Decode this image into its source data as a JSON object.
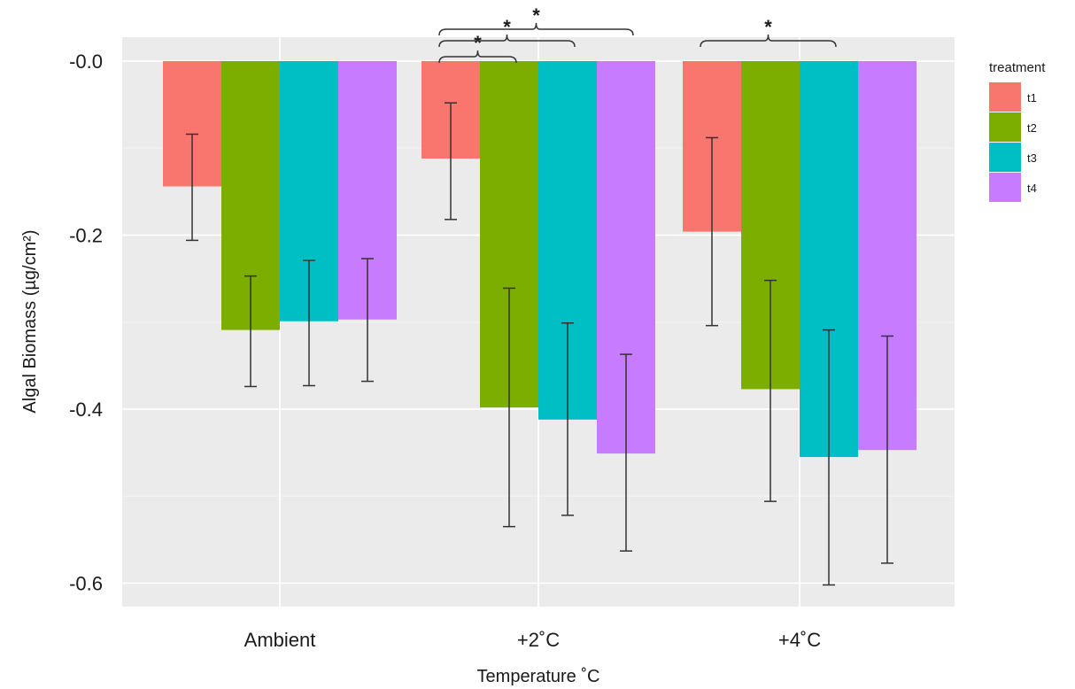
{
  "chart_data": {
    "type": "bar",
    "title": "",
    "xlabel": "Temperature ˚C",
    "ylabel": "Algal Biomass (µg/cm²)",
    "categories": [
      "Ambient",
      "+2˚C",
      "+4˚C"
    ],
    "ylim": [
      -0.63,
      0.03
    ],
    "yticks": [
      0.0,
      -0.2,
      -0.4,
      -0.6
    ],
    "ytick_labels": [
      "-0.0",
      "-0.2",
      "-0.4",
      "-0.6"
    ],
    "grid": true,
    "legend": {
      "title": "treatment",
      "position": "right"
    },
    "series": [
      {
        "name": "t1",
        "color": "#F8766D",
        "values": [
          -0.144,
          -0.112,
          -0.196
        ],
        "error_low": [
          -0.206,
          -0.182,
          -0.304
        ],
        "error_high": [
          -0.084,
          -0.048,
          -0.088
        ]
      },
      {
        "name": "t2",
        "color": "#7CAE00",
        "values": [
          -0.309,
          -0.398,
          -0.377
        ],
        "error_low": [
          -0.374,
          -0.535,
          -0.506
        ],
        "error_high": [
          -0.247,
          -0.261,
          -0.252
        ]
      },
      {
        "name": "t3",
        "color": "#00BFC4",
        "values": [
          -0.299,
          -0.412,
          -0.455
        ],
        "error_low": [
          -0.373,
          -0.522,
          -0.602
        ],
        "error_high": [
          -0.229,
          -0.301,
          -0.309
        ]
      },
      {
        "name": "t4",
        "color": "#C77CFF",
        "values": [
          -0.297,
          -0.451,
          -0.447
        ],
        "error_low": [
          -0.368,
          -0.563,
          -0.577
        ],
        "error_high": [
          -0.227,
          -0.337,
          -0.316
        ]
      }
    ],
    "significance": [
      {
        "category": 1,
        "from_series": 0,
        "to_series": 1,
        "label": "*"
      },
      {
        "category": 1,
        "from_series": 0,
        "to_series": 2,
        "label": "*"
      },
      {
        "category": 1,
        "from_series": 0,
        "to_series": 3,
        "label": "*"
      },
      {
        "category": 2,
        "from_series": 0,
        "to_series": 2,
        "label": "*"
      }
    ]
  }
}
